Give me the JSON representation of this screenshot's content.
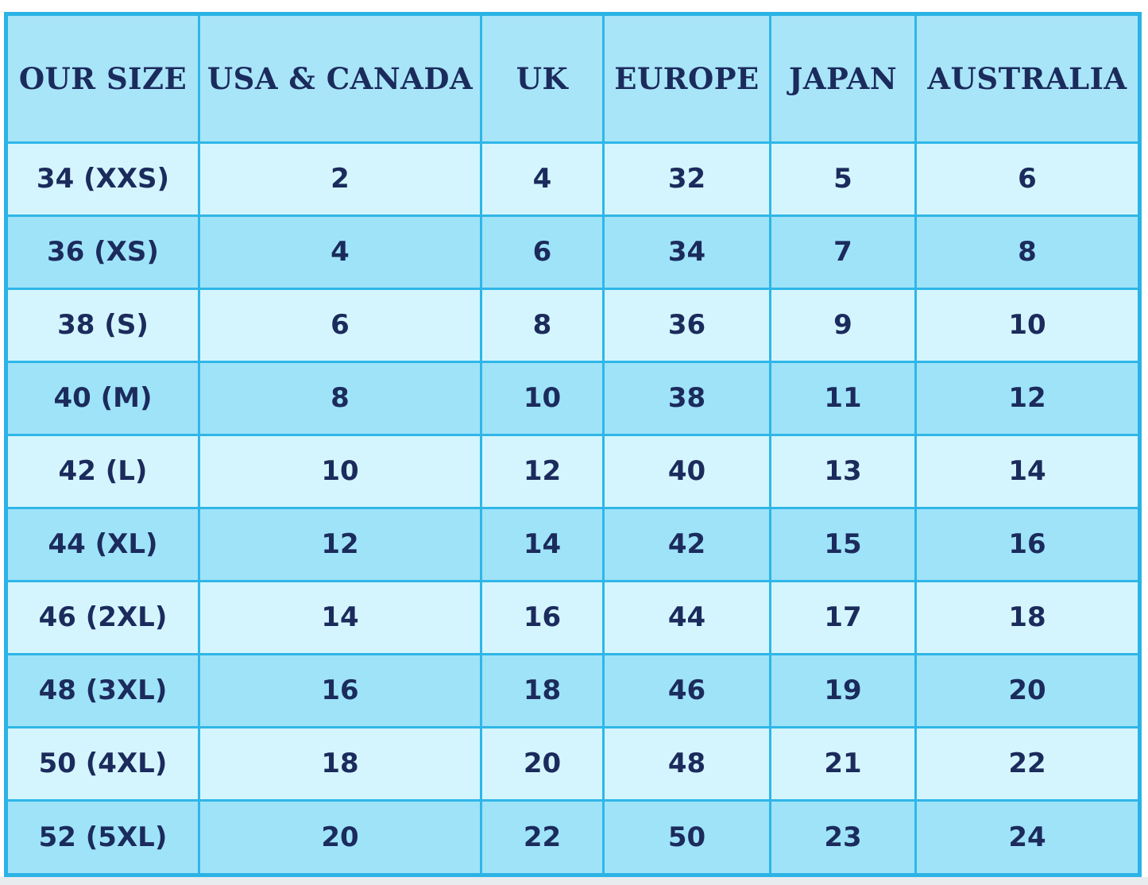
{
  "table": {
    "header": [
      "OUR SIZE",
      "USA & CANADA",
      "UK",
      "EUROPE",
      "JAPAN",
      "AUSTRALIA"
    ],
    "rows": [
      [
        "34 (XXS)",
        2,
        4,
        32,
        5,
        6
      ],
      [
        "36 (XS)",
        4,
        6,
        34,
        7,
        8
      ],
      [
        "38 (S)",
        6,
        8,
        36,
        9,
        10
      ],
      [
        "40 (M)",
        8,
        10,
        38,
        11,
        12
      ],
      [
        "42 (L)",
        10,
        12,
        40,
        13,
        14
      ],
      [
        "44 (XL)",
        12,
        14,
        42,
        15,
        16
      ],
      [
        "46 (2XL)",
        14,
        16,
        44,
        17,
        18
      ],
      [
        "48 (3XL)",
        16,
        18,
        46,
        19,
        20
      ],
      [
        "50 (4XL)",
        18,
        20,
        48,
        21,
        22
      ],
      [
        "52 (5XL)",
        20,
        22,
        50,
        23,
        24
      ]
    ]
  }
}
